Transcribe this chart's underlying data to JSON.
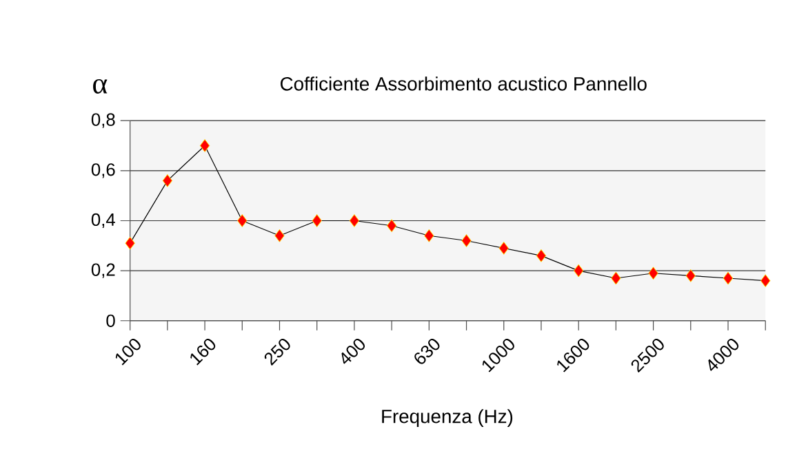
{
  "chart_data": {
    "type": "line",
    "title": "Cofficiente Assorbimento acustico Pannello",
    "xlabel": "Frequenza (Hz)",
    "ylabel": "α",
    "categories": [
      "100",
      null,
      "160",
      null,
      "250",
      null,
      "400",
      null,
      "630",
      null,
      "1000",
      null,
      "1600",
      null,
      "2500",
      null,
      "4000",
      null
    ],
    "series": [
      {
        "color": "#ff0000",
        "values": [
          0.31,
          0.56,
          0.7,
          0.4,
          0.34,
          0.4,
          0.4,
          0.38,
          0.34,
          0.32,
          0.29,
          0.26,
          0.2,
          0.17,
          0.19,
          0.18,
          0.17,
          0.16
        ]
      }
    ],
    "ylim": [
      0,
      0.8
    ],
    "yticks": [
      {
        "value": 0,
        "label": "0"
      },
      {
        "value": 0.2,
        "label": "0,2"
      },
      {
        "value": 0.4,
        "label": "0,4"
      },
      {
        "value": 0.6,
        "label": "0,6"
      },
      {
        "value": 0.8,
        "label": "0,8"
      }
    ],
    "grid": "y",
    "marker": "diamond",
    "line_style": "solid"
  }
}
